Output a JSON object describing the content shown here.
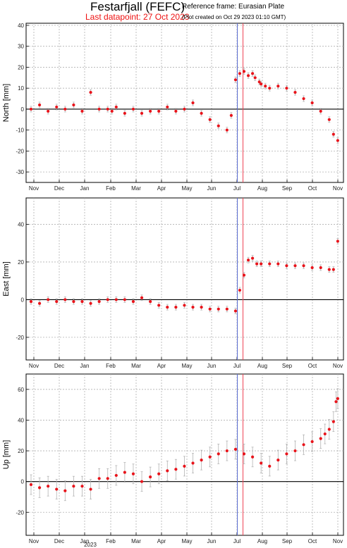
{
  "header": {
    "title": "Festarfjall (FEFC)",
    "reference_frame": "Reference frame: Eurasian Plate",
    "last_datapoint": "Last datapoint: 27 Oct 2023",
    "plot_created": "(Plot created on Oct 29 2023 01:10 GMT)"
  },
  "colors": {
    "points": "#e8141b",
    "error_bars": "#b4b4b4",
    "grid": "#b0b0b0",
    "zero_line": "#000000",
    "marker_blue": "#5a6cd0",
    "marker_red": "#ee4455"
  },
  "chart_data": [
    {
      "type": "scatter",
      "ylabel": "North [mm]",
      "ylim": [
        -35,
        41
      ],
      "yticks": [
        -30,
        -20,
        -10,
        0,
        10,
        20,
        30,
        40
      ],
      "x_tick_labels": [
        "Nov",
        "Dec",
        "Jan",
        "Feb",
        "Mar",
        "Apr",
        "May",
        "Jun",
        "Jul",
        "Aug",
        "Sep",
        "Oct",
        "Nov"
      ],
      "x_extra_label": "",
      "grid": true,
      "series": [
        {
          "x": [
            0,
            10,
            20,
            30,
            40,
            50,
            60,
            70,
            80,
            90,
            95,
            100,
            110,
            120,
            130,
            140,
            150,
            160,
            170,
            180,
            190,
            200,
            210,
            220,
            230,
            235,
            240,
            245,
            250,
            255,
            260,
            263,
            268,
            270,
            275,
            280,
            290,
            300,
            310,
            320,
            330,
            340,
            350,
            355,
            360
          ],
          "y": [
            0,
            2,
            -1,
            1,
            0,
            2,
            -1,
            8,
            0,
            0,
            -1,
            1,
            -2,
            0,
            -2,
            -1,
            -1,
            1,
            -1,
            0,
            3,
            -2,
            -5,
            -8,
            -10,
            -3,
            14,
            17,
            18,
            16,
            17,
            15,
            13,
            12,
            11,
            10,
            11,
            10,
            8,
            5,
            3,
            -1,
            -5,
            -12,
            -15
          ]
        }
      ]
    },
    {
      "type": "scatter",
      "ylabel": "East [mm]",
      "ylim": [
        -32,
        54
      ],
      "yticks": [
        -20,
        0,
        20,
        40
      ],
      "x_tick_labels": [
        "Nov",
        "Dec",
        "Jan",
        "Feb",
        "Mar",
        "Apr",
        "May",
        "Jun",
        "Jul",
        "Aug",
        "Sep",
        "Oct",
        "Nov"
      ],
      "x_extra_label": "",
      "grid": true,
      "series": [
        {
          "x": [
            0,
            10,
            20,
            30,
            40,
            50,
            60,
            70,
            80,
            90,
            100,
            110,
            120,
            130,
            140,
            150,
            160,
            170,
            180,
            190,
            200,
            210,
            220,
            230,
            240,
            245,
            250,
            255,
            260,
            265,
            270,
            280,
            290,
            300,
            310,
            320,
            330,
            340,
            350,
            355,
            360
          ],
          "y": [
            -1,
            -2,
            0,
            -1,
            0,
            -1,
            -1,
            -2,
            -1,
            0,
            0,
            0,
            -1,
            1,
            -1,
            -3,
            -4,
            -4,
            -3,
            -4,
            -4,
            -5,
            -5,
            -5,
            -6,
            5,
            13,
            21,
            22,
            19,
            19,
            19,
            19,
            18,
            18,
            18,
            17,
            17,
            16,
            16,
            31
          ]
        }
      ]
    },
    {
      "type": "scatter",
      "ylabel": "Up [mm]",
      "ylim": [
        -35,
        70
      ],
      "yticks": [
        -20,
        0,
        20,
        40,
        60
      ],
      "x_tick_labels": [
        "Nov",
        "Dec",
        "Jan",
        "Feb",
        "Mar",
        "Apr",
        "May",
        "Jun",
        "Jul",
        "Aug",
        "Sep",
        "Oct",
        "Nov"
      ],
      "x_extra_label": "2023",
      "grid": true,
      "series": [
        {
          "x": [
            0,
            10,
            20,
            30,
            40,
            50,
            60,
            70,
            80,
            90,
            100,
            110,
            120,
            130,
            140,
            150,
            160,
            170,
            180,
            190,
            200,
            210,
            220,
            230,
            240,
            250,
            260,
            270,
            280,
            290,
            300,
            310,
            320,
            330,
            340,
            345,
            350,
            355,
            358,
            360
          ],
          "y": [
            -2,
            -4,
            -3,
            -5,
            -6,
            -3,
            -3,
            -5,
            2,
            2,
            4,
            6,
            5,
            0,
            3,
            5,
            7,
            8,
            10,
            12,
            14,
            16,
            18,
            20,
            21,
            18,
            16,
            12,
            10,
            14,
            18,
            20,
            24,
            26,
            28,
            31,
            34,
            39,
            52,
            54
          ]
        }
      ]
    }
  ]
}
